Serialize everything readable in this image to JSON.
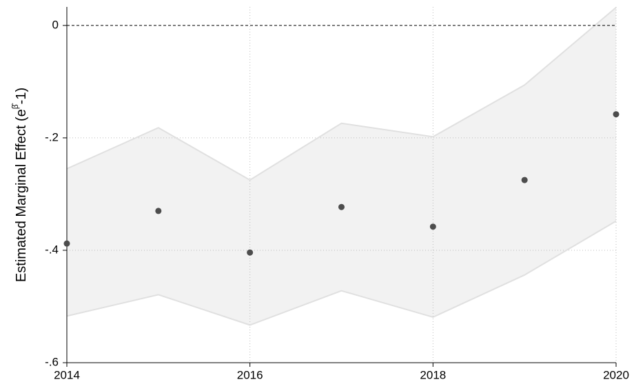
{
  "chart_data": {
    "type": "scatter",
    "ylabel": [
      "Estimated Marginal Effect (e",
      "β̂",
      "-1)"
    ],
    "x": [
      2014,
      2015,
      2016,
      2017,
      2018,
      2019,
      2020
    ],
    "values": [
      -0.388,
      -0.33,
      -0.404,
      -0.323,
      -0.358,
      -0.275,
      -0.158
    ],
    "upper": [
      -0.255,
      -0.182,
      -0.275,
      -0.174,
      -0.198,
      -0.106,
      0.032
    ],
    "lower": [
      -0.517,
      -0.479,
      -0.533,
      -0.472,
      -0.519,
      -0.444,
      -0.348
    ],
    "color": "#4d4d4d",
    "band_color": "#f2f2f2",
    "band_line_color": "#e0e0e0",
    "xlim": [
      2014,
      2020
    ],
    "xticks": [
      2014,
      2016,
      2018,
      2020
    ],
    "ylim": [
      -0.6,
      0.033
    ],
    "yticks": [
      {
        "value": -0.6,
        "label": "-.6"
      },
      {
        "value": -0.4,
        "label": "-.4"
      },
      {
        "value": -0.2,
        "label": "-.2"
      },
      0
    ],
    "refline": 0,
    "grid": true
  }
}
